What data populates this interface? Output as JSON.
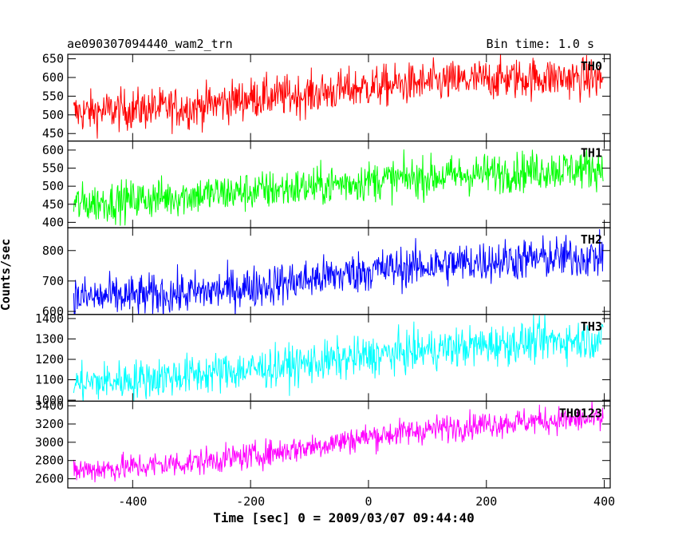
{
  "header": {
    "title": "ae090307094440_wam2_trn",
    "bin_time": "Bin time: 1.0 s"
  },
  "chart_data": {
    "type": "line",
    "xlabel": "Time [sec] 0 = 2009/03/07 09:44:40",
    "ylabel": "Counts/sec",
    "xlim": [
      -510,
      410
    ],
    "xticks": [
      -400,
      -200,
      0,
      200,
      400
    ],
    "panels": [
      {
        "name": "TH0",
        "color": "#ff0000",
        "ylim": [
          430,
          662
        ],
        "yticks": [
          450,
          500,
          550,
          600,
          650
        ],
        "trend": [
          [
            -500,
            505
          ],
          [
            -400,
            515
          ],
          [
            -300,
            520
          ],
          [
            -200,
            545
          ],
          [
            -100,
            555
          ],
          [
            0,
            575
          ],
          [
            100,
            585
          ],
          [
            200,
            595
          ],
          [
            300,
            600
          ],
          [
            400,
            595
          ]
        ],
        "noise": 28
      },
      {
        "name": "TH1",
        "color": "#00ff00",
        "ylim": [
          385,
          625
        ],
        "yticks": [
          400,
          450,
          500,
          550,
          600
        ],
        "trend": [
          [
            -500,
            450
          ],
          [
            -400,
            462
          ],
          [
            -300,
            475
          ],
          [
            -200,
            485
          ],
          [
            -100,
            498
          ],
          [
            0,
            515
          ],
          [
            100,
            525
          ],
          [
            200,
            535
          ],
          [
            300,
            545
          ],
          [
            400,
            550
          ]
        ],
        "noise": 28
      },
      {
        "name": "TH2",
        "color": "#0000ff",
        "ylim": [
          590,
          875
        ],
        "yticks": [
          600,
          700,
          800
        ],
        "trend": [
          [
            -500,
            645
          ],
          [
            -400,
            650
          ],
          [
            -300,
            660
          ],
          [
            -200,
            680
          ],
          [
            -100,
            705
          ],
          [
            0,
            735
          ],
          [
            100,
            750
          ],
          [
            200,
            765
          ],
          [
            300,
            775
          ],
          [
            400,
            780
          ]
        ],
        "noise": 35
      },
      {
        "name": "TH3",
        "color": "#00ffff",
        "ylim": [
          995,
          1420
        ],
        "yticks": [
          1000,
          1100,
          1200,
          1300,
          1400
        ],
        "trend": [
          [
            -500,
            1080
          ],
          [
            -400,
            1100
          ],
          [
            -300,
            1125
          ],
          [
            -200,
            1150
          ],
          [
            -100,
            1180
          ],
          [
            0,
            1215
          ],
          [
            100,
            1245
          ],
          [
            200,
            1270
          ],
          [
            300,
            1290
          ],
          [
            400,
            1300
          ]
        ],
        "noise": 50
      },
      {
        "name": "TH0123",
        "color": "#ff00ff",
        "ylim": [
          2500,
          3450
        ],
        "yticks": [
          2600,
          2800,
          3000,
          3200,
          3400
        ],
        "trend": [
          [
            -500,
            2690
          ],
          [
            -400,
            2730
          ],
          [
            -300,
            2780
          ],
          [
            -200,
            2850
          ],
          [
            -100,
            2950
          ],
          [
            0,
            3060
          ],
          [
            100,
            3140
          ],
          [
            200,
            3200
          ],
          [
            300,
            3240
          ],
          [
            400,
            3250
          ]
        ],
        "noise": 75
      }
    ]
  }
}
